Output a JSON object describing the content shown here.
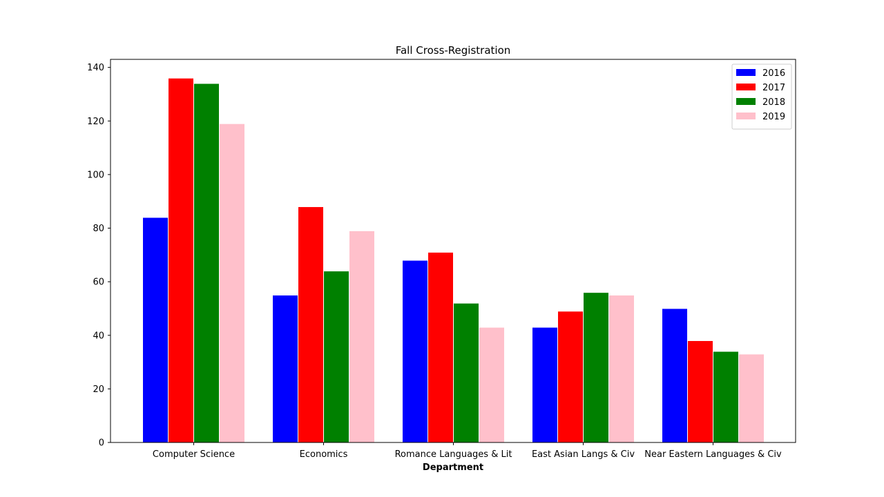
{
  "chart_data": {
    "type": "bar",
    "title": "Fall Cross-Registration",
    "xlabel": "Department",
    "ylabel": "",
    "ylim": [
      0,
      143
    ],
    "yticks": [
      0,
      20,
      40,
      60,
      80,
      100,
      120,
      140
    ],
    "grid": false,
    "legend_position": "top-right",
    "categories": [
      "Computer Science",
      "Economics",
      "Romance Languages & Lit",
      "East Asian Langs & Civ",
      "Near Eastern Languages & Civ"
    ],
    "series": [
      {
        "name": "2016",
        "color": "#0000ff",
        "values": [
          84,
          55,
          68,
          43,
          50
        ]
      },
      {
        "name": "2017",
        "color": "#ff0000",
        "values": [
          136,
          88,
          71,
          49,
          38
        ]
      },
      {
        "name": "2018",
        "color": "#008000",
        "values": [
          134,
          64,
          52,
          56,
          34
        ]
      },
      {
        "name": "2019",
        "color": "#ffc0cb",
        "values": [
          119,
          79,
          43,
          55,
          33
        ]
      }
    ]
  }
}
